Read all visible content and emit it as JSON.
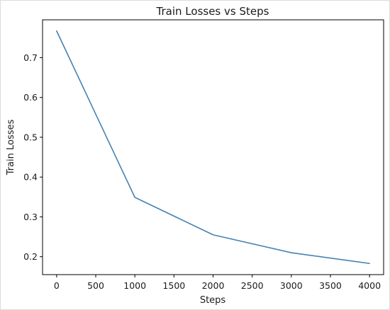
{
  "chart_data": {
    "type": "line",
    "title": "Train Losses vs Steps",
    "xlabel": "Steps",
    "ylabel": "Train Losses",
    "xlim": [
      -180,
      4180
    ],
    "ylim": [
      0.155,
      0.795
    ],
    "xticks": [
      0,
      500,
      1000,
      1500,
      2000,
      2500,
      3000,
      3500,
      4000
    ],
    "yticks": [
      0.2,
      0.3,
      0.4,
      0.5,
      0.6,
      0.7
    ],
    "ytick_labels": [
      "0.2",
      "0.3",
      "0.4",
      "0.5",
      "0.6",
      "0.7"
    ],
    "grid": false,
    "series": [
      {
        "color": "#4682b4",
        "x": [
          0,
          1000,
          2000,
          3000,
          4000
        ],
        "y": [
          0.767,
          0.349,
          0.255,
          0.21,
          0.183
        ]
      }
    ]
  }
}
